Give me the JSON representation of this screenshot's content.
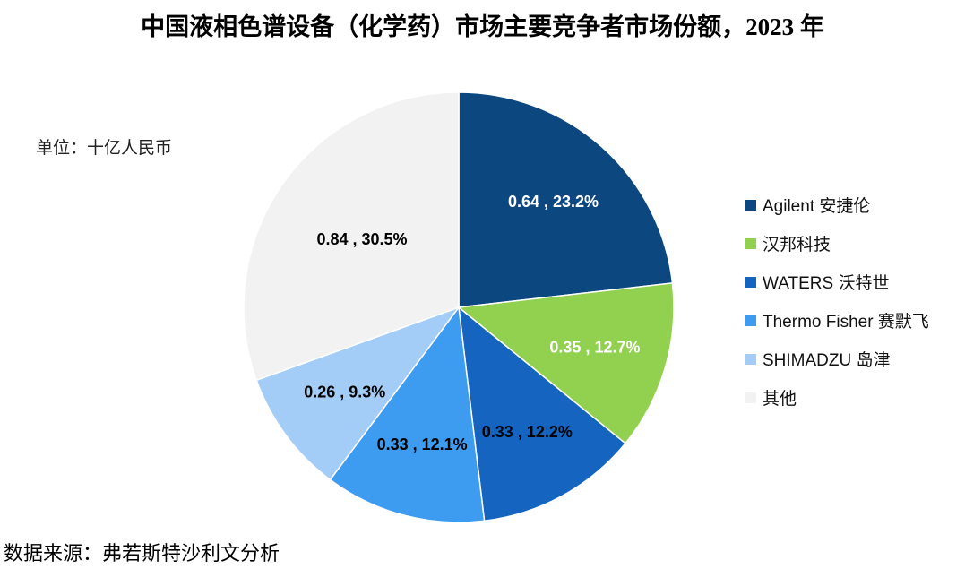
{
  "title": "中国液相色谱设备（化学药）市场主要竞争者市场份额，2023 年",
  "unit": "单位：十亿人民币",
  "source": "数据来源：弗若斯特沙利文分析",
  "chart_data": {
    "type": "pie",
    "title": "中国液相色谱设备（化学药）市场主要竞争者市场份额，2023 年",
    "legend_position": "right",
    "slices": [
      {
        "name": "Agilent 安捷伦",
        "value": 0.64,
        "percent": 23.2,
        "label": "0.64 , 23.2%",
        "color": "#0d4780",
        "label_color": "#ffffff"
      },
      {
        "name": "汉邦科技",
        "value": 0.35,
        "percent": 12.7,
        "label": "0.35 , 12.7%",
        "color": "#92d050",
        "label_color": "#ffffff"
      },
      {
        "name": "WATERS 沃特世",
        "value": 0.33,
        "percent": 12.2,
        "label": "0.33 , 12.2%",
        "color": "#1565c0",
        "label_color": "#000000"
      },
      {
        "name": "Thermo Fisher 赛默飞",
        "value": 0.33,
        "percent": 12.1,
        "label": "0.33 , 12.1%",
        "color": "#3d9bf0",
        "label_color": "#000000"
      },
      {
        "name": "SHIMADZU 岛津",
        "value": 0.26,
        "percent": 9.3,
        "label": "0.26 , 9.3%",
        "color": "#a3cdf7",
        "label_color": "#000000"
      },
      {
        "name": "其他",
        "value": 0.84,
        "percent": 30.5,
        "label": "0.84 , 30.5%",
        "color": "#f2f2f2",
        "label_color": "#000000"
      }
    ]
  }
}
